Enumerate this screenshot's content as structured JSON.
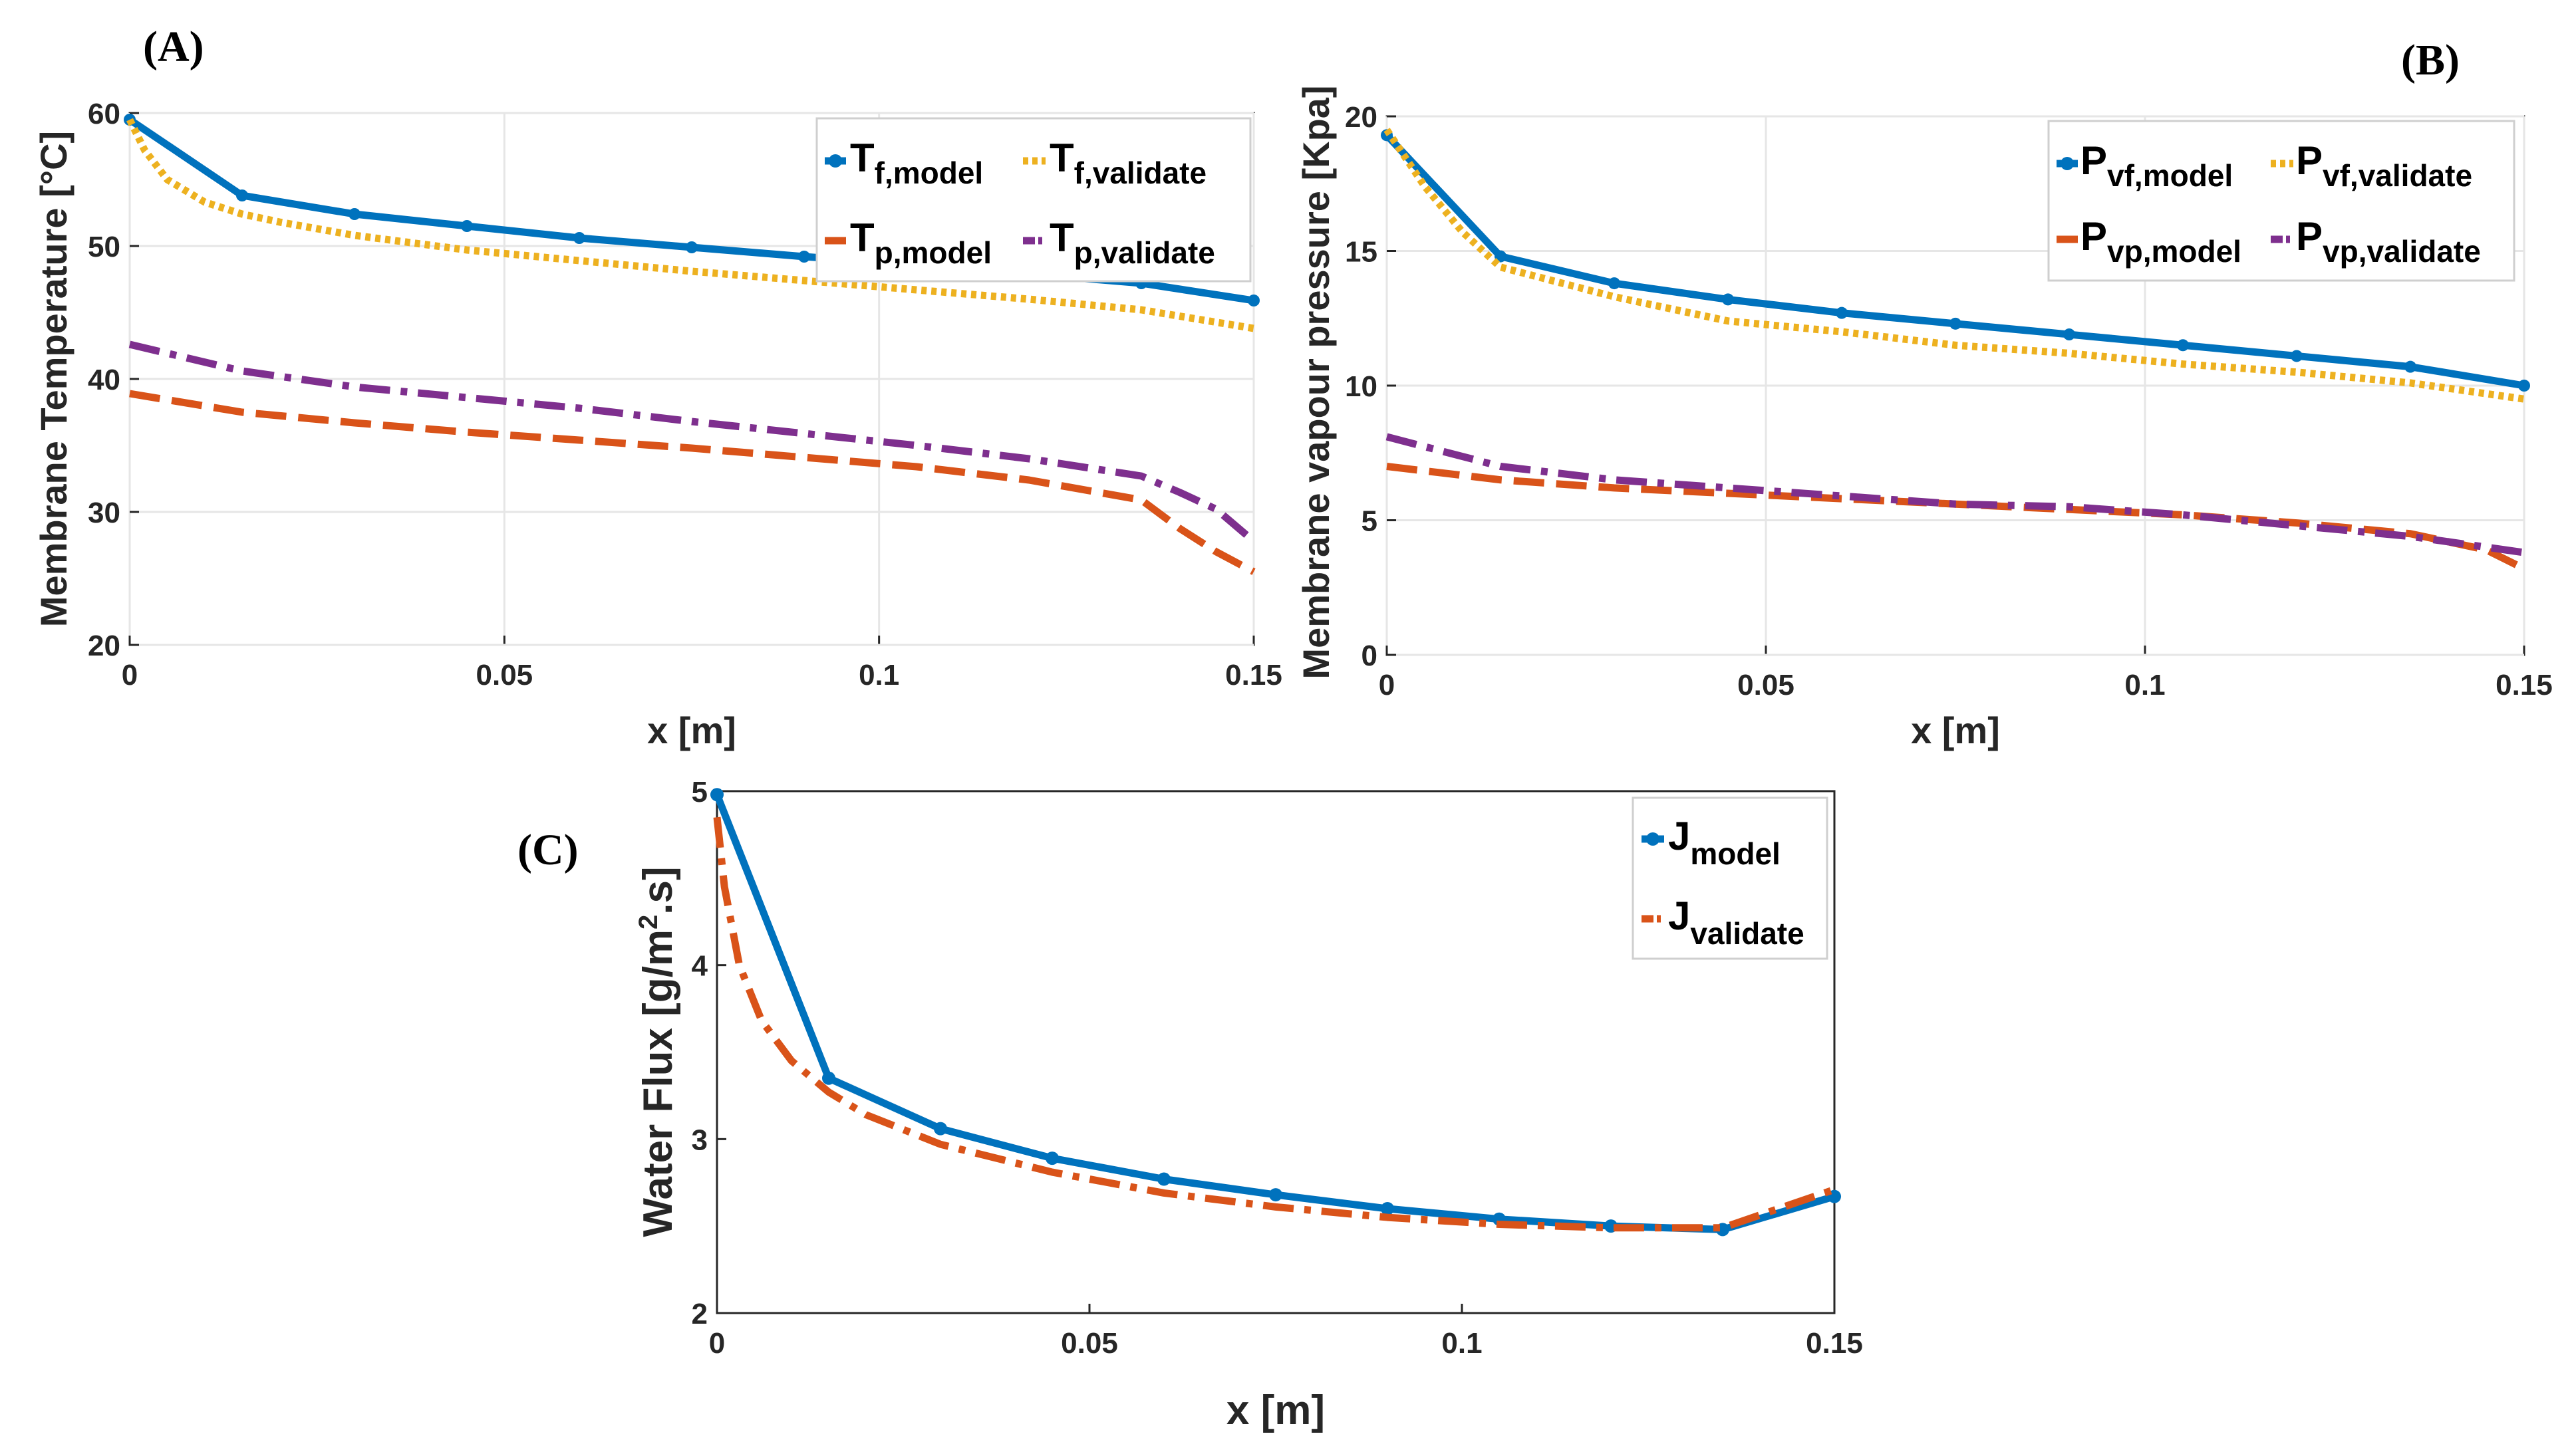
{
  "chart_data": [
    {
      "panel": "(A)",
      "type": "line",
      "title": "",
      "xlabel": "x [m]",
      "ylabel": "Membrane Temperature [°C]",
      "xlim": [
        0,
        0.15
      ],
      "ylim": [
        20,
        60
      ],
      "xticks": [
        0,
        0.05,
        0.1,
        0.15
      ],
      "xtick_labels": [
        "0",
        "0.05",
        "0.1",
        "0.15"
      ],
      "yticks": [
        20,
        30,
        40,
        50,
        60
      ],
      "ytick_labels": [
        "20",
        "30",
        "40",
        "50",
        "60"
      ],
      "grid": true,
      "legend_position": "top-right",
      "legend_columns": 2,
      "series": [
        {
          "key": "tfm",
          "main": "T",
          "sub": "f,model",
          "color": "#0072BD",
          "style": "solid-marker",
          "x": [
            0,
            0.015,
            0.03,
            0.045,
            0.06,
            0.075,
            0.09,
            0.105,
            0.12,
            0.135,
            0.15
          ],
          "y": [
            59.5,
            53.8,
            52.4,
            51.5,
            50.6,
            49.9,
            49.2,
            48.6,
            47.9,
            47.2,
            45.9
          ]
        },
        {
          "key": "tfv",
          "main": "T",
          "sub": "f,validate",
          "color": "#EDB120",
          "style": "dotted",
          "x": [
            0,
            0.002,
            0.005,
            0.01,
            0.015,
            0.02,
            0.03,
            0.045,
            0.06,
            0.075,
            0.09,
            0.105,
            0.12,
            0.135,
            0.15
          ],
          "y": [
            59.5,
            57.2,
            55.0,
            53.3,
            52.4,
            51.8,
            50.8,
            49.7,
            48.9,
            48.1,
            47.4,
            46.7,
            46.0,
            45.2,
            43.8
          ]
        },
        {
          "key": "tpm",
          "main": "T",
          "sub": "p,model",
          "color": "#D95319",
          "style": "dashed",
          "x": [
            0,
            0.015,
            0.03,
            0.045,
            0.06,
            0.075,
            0.09,
            0.105,
            0.12,
            0.135,
            0.14,
            0.145,
            0.15
          ],
          "y": [
            38.9,
            37.5,
            36.7,
            36.0,
            35.4,
            34.8,
            34.1,
            33.4,
            32.4,
            30.9,
            28.8,
            27.0,
            25.5
          ]
        },
        {
          "key": "tpv",
          "main": "T",
          "sub": "p,validate",
          "color": "#7E2F8E",
          "style": "dashdot",
          "x": [
            0,
            0.015,
            0.03,
            0.045,
            0.06,
            0.075,
            0.09,
            0.105,
            0.12,
            0.135,
            0.14,
            0.145,
            0.15
          ],
          "y": [
            42.6,
            40.6,
            39.4,
            38.6,
            37.8,
            36.8,
            35.9,
            35.0,
            34.0,
            32.7,
            31.5,
            30.2,
            27.8
          ]
        }
      ]
    },
    {
      "panel": "(B)",
      "type": "line",
      "title": "",
      "xlabel": "x [m]",
      "ylabel": "Membrane vapour pressure [Kpa]",
      "xlim": [
        0,
        0.15
      ],
      "ylim": [
        0,
        20
      ],
      "xticks": [
        0,
        0.05,
        0.1,
        0.15
      ],
      "xtick_labels": [
        "0",
        "0.05",
        "0.1",
        "0.15"
      ],
      "yticks": [
        0,
        5,
        10,
        15,
        20
      ],
      "ytick_labels": [
        "0",
        "5",
        "10",
        "15",
        "20"
      ],
      "grid": true,
      "legend_position": "top-right",
      "legend_columns": 2,
      "series": [
        {
          "key": "pvfm",
          "main": "P",
          "sub": "vf,model",
          "color": "#0072BD",
          "style": "solid-marker",
          "x": [
            0,
            0.015,
            0.03,
            0.045,
            0.06,
            0.075,
            0.09,
            0.105,
            0.12,
            0.135,
            0.15
          ],
          "y": [
            19.3,
            14.8,
            13.8,
            13.2,
            12.7,
            12.3,
            11.9,
            11.5,
            11.1,
            10.7,
            10.0
          ]
        },
        {
          "key": "pvfv",
          "main": "P",
          "sub": "vf,validate",
          "color": "#EDB120",
          "style": "dotted",
          "x": [
            0,
            0.005,
            0.01,
            0.015,
            0.03,
            0.045,
            0.06,
            0.075,
            0.09,
            0.105,
            0.12,
            0.135,
            0.15
          ],
          "y": [
            19.5,
            17.4,
            15.7,
            14.4,
            13.3,
            12.4,
            12.0,
            11.5,
            11.2,
            10.8,
            10.5,
            10.1,
            9.5
          ]
        },
        {
          "key": "pvpm",
          "main": "P",
          "sub": "vp,model",
          "color": "#D95319",
          "style": "dashed",
          "x": [
            0,
            0.015,
            0.03,
            0.045,
            0.06,
            0.075,
            0.09,
            0.105,
            0.12,
            0.135,
            0.145,
            0.15
          ],
          "y": [
            7.0,
            6.5,
            6.2,
            6.0,
            5.8,
            5.6,
            5.4,
            5.2,
            4.9,
            4.5,
            3.9,
            3.2
          ]
        },
        {
          "key": "pvpv",
          "main": "P",
          "sub": "vp,validate",
          "color": "#7E2F8E",
          "style": "dashdot",
          "x": [
            0,
            0.015,
            0.03,
            0.045,
            0.06,
            0.075,
            0.09,
            0.105,
            0.12,
            0.135,
            0.15
          ],
          "y": [
            8.1,
            7.0,
            6.5,
            6.2,
            5.9,
            5.6,
            5.5,
            5.2,
            4.8,
            4.4,
            3.8
          ]
        }
      ]
    },
    {
      "panel": "(C)",
      "type": "line",
      "title": "",
      "xlabel": "x [m]",
      "ylabel": "Water Flux [g/m2.s]",
      "ylabel_parts": {
        "pre": "Water Flux [g/m",
        "sup": "2",
        "post": ".s]"
      },
      "xlim": [
        0,
        0.15
      ],
      "ylim": [
        2,
        5
      ],
      "xticks": [
        0,
        0.05,
        0.1,
        0.15
      ],
      "xtick_labels": [
        "0",
        "0.05",
        "0.1",
        "0.15"
      ],
      "yticks": [
        2,
        3,
        4,
        5
      ],
      "ytick_labels": [
        "2",
        "3",
        "4",
        "5"
      ],
      "grid": false,
      "legend_position": "top-right",
      "legend_columns": 1,
      "series": [
        {
          "key": "jm",
          "main": "J",
          "sub": "model",
          "color": "#0072BD",
          "style": "solid-marker",
          "x": [
            0,
            0.015,
            0.03,
            0.045,
            0.06,
            0.075,
            0.09,
            0.105,
            0.12,
            0.135,
            0.15
          ],
          "y": [
            4.98,
            3.35,
            3.06,
            2.89,
            2.77,
            2.68,
            2.6,
            2.54,
            2.5,
            2.48,
            2.67
          ]
        },
        {
          "key": "jv",
          "main": "J",
          "sub": "validate",
          "color": "#D95319",
          "style": "dashdot",
          "x": [
            0,
            0.001,
            0.003,
            0.006,
            0.01,
            0.015,
            0.02,
            0.03,
            0.045,
            0.06,
            0.075,
            0.09,
            0.105,
            0.12,
            0.135,
            0.15
          ],
          "y": [
            4.85,
            4.45,
            4.0,
            3.68,
            3.45,
            3.27,
            3.14,
            2.97,
            2.81,
            2.69,
            2.61,
            2.55,
            2.51,
            2.49,
            2.49,
            2.71
          ]
        }
      ]
    }
  ]
}
